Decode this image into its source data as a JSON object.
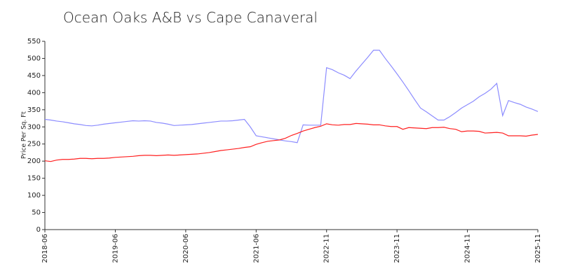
{
  "chart_data": {
    "type": "line",
    "title": "Ocean Oaks A&B vs Cape Canaveral",
    "y_label": "Price Per Sq. Ft",
    "categories": [
      "2018-06",
      null,
      null,
      null,
      null,
      null,
      null,
      null,
      null,
      null,
      null,
      null,
      "2019-06",
      null,
      null,
      null,
      null,
      null,
      null,
      null,
      null,
      null,
      null,
      null,
      "2020-06",
      null,
      null,
      null,
      null,
      null,
      null,
      null,
      null,
      null,
      null,
      null,
      "2021-06",
      null,
      null,
      null,
      null,
      null,
      null,
      null,
      null,
      null,
      null,
      null,
      "2022-11",
      null,
      null,
      null,
      null,
      null,
      null,
      null,
      null,
      null,
      null,
      null,
      "2023-11",
      null,
      null,
      null,
      null,
      null,
      null,
      null,
      null,
      null,
      null,
      null,
      "2024-11",
      null,
      null,
      null,
      null,
      null,
      null,
      null,
      null,
      null,
      null,
      null,
      "2025-11"
    ],
    "series": [
      {
        "color": "#8c8cff",
        "values": [
          322,
          320,
          317,
          315,
          312,
          309,
          307,
          304,
          303,
          305,
          308,
          310,
          312,
          314,
          316,
          318,
          317,
          318,
          317,
          313,
          311,
          308,
          304,
          305,
          306,
          307,
          309,
          311,
          313,
          315,
          317,
          317,
          318,
          320,
          322,
          300,
          274,
          271,
          268,
          265,
          262,
          259,
          257,
          254,
          306,
          305,
          305,
          305,
          473,
          467,
          458,
          451,
          441,
          463,
          483,
          503,
          524,
          524,
          500,
          478,
          455,
          431,
          406,
          380,
          355,
          344,
          332,
          320,
          320,
          330,
          342,
          355,
          365,
          375,
          388,
          398,
          410,
          427,
          333,
          377,
          371,
          366,
          358,
          352,
          345
        ]
      },
      {
        "color": "#ff2020",
        "values": [
          201,
          199,
          203,
          205,
          205,
          206,
          208,
          208,
          207,
          208,
          208,
          209,
          211,
          212,
          213,
          214,
          216,
          217,
          217,
          216,
          217,
          218,
          217,
          218,
          219,
          220,
          221,
          223,
          225,
          228,
          231,
          233,
          235,
          237,
          240,
          242,
          249,
          254,
          258,
          260,
          262,
          267,
          275,
          281,
          288,
          293,
          298,
          302,
          309,
          306,
          305,
          307,
          307,
          310,
          309,
          308,
          306,
          306,
          303,
          301,
          301,
          293,
          298,
          297,
          296,
          295,
          298,
          298,
          299,
          295,
          293,
          286,
          288,
          288,
          287,
          282,
          283,
          284,
          282,
          274,
          274,
          274,
          273,
          276,
          278
        ]
      }
    ],
    "ylim": [
      0,
      550
    ],
    "yticks": [
      0,
      50,
      100,
      150,
      200,
      250,
      300,
      350,
      400,
      450,
      500,
      550
    ]
  }
}
